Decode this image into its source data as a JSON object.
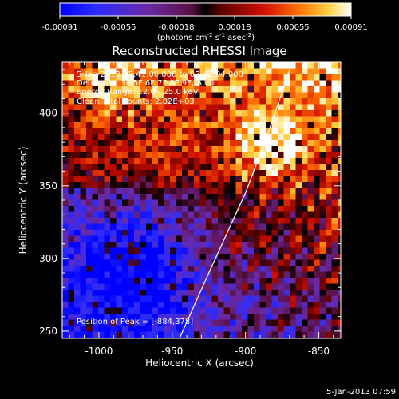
{
  "chart_data": {
    "type": "heatmap",
    "title": "Reconstructed RHESSI Image",
    "xlabel": "Heliocentric X (arcsec)",
    "ylabel": "Heliocentric Y (arcsec)",
    "xlim": [
      -1025,
      -835
    ],
    "ylim": [
      245,
      435
    ],
    "xticks": [
      -1000,
      -950,
      -900,
      -850
    ],
    "yticks": [
      250,
      300,
      350,
      400
    ],
    "colorbar": {
      "ticks": [
        "-0.00091",
        "-0.00055",
        "-0.00018",
        "0.00018",
        "0.00055",
        "0.00091"
      ],
      "range": [
        -0.00091,
        0.00091
      ],
      "unit_prefix": "(photons cm",
      "unit_sup1": "-2",
      "unit_mid": " s",
      "unit_sup2": "-1",
      "unit_mid2": " asec",
      "unit_sup3": "-2",
      "unit_suffix": ")"
    },
    "annotations": [
      "5-Jan-2013 05:41:00.000 to 05:42:04.000",
      "Detectors: 3F 5F 6F 7F 8F 9F, All 0",
      "Energy Range: 12.0 - 25.0 keV",
      "Clean      Total counts: 2.82E+03"
    ],
    "peak_label": "Position of Peak = [-884,378]",
    "peak": [
      -884,
      378
    ],
    "limb_curve": [
      [
        -945,
        245
      ],
      [
        -925,
        290
      ],
      [
        -900,
        345
      ],
      [
        -885,
        385
      ],
      [
        -868,
        435
      ]
    ],
    "footer": "5-Jan-2013 07:59",
    "colors": {
      "background": "#000000",
      "limb": "#ffffff"
    }
  }
}
